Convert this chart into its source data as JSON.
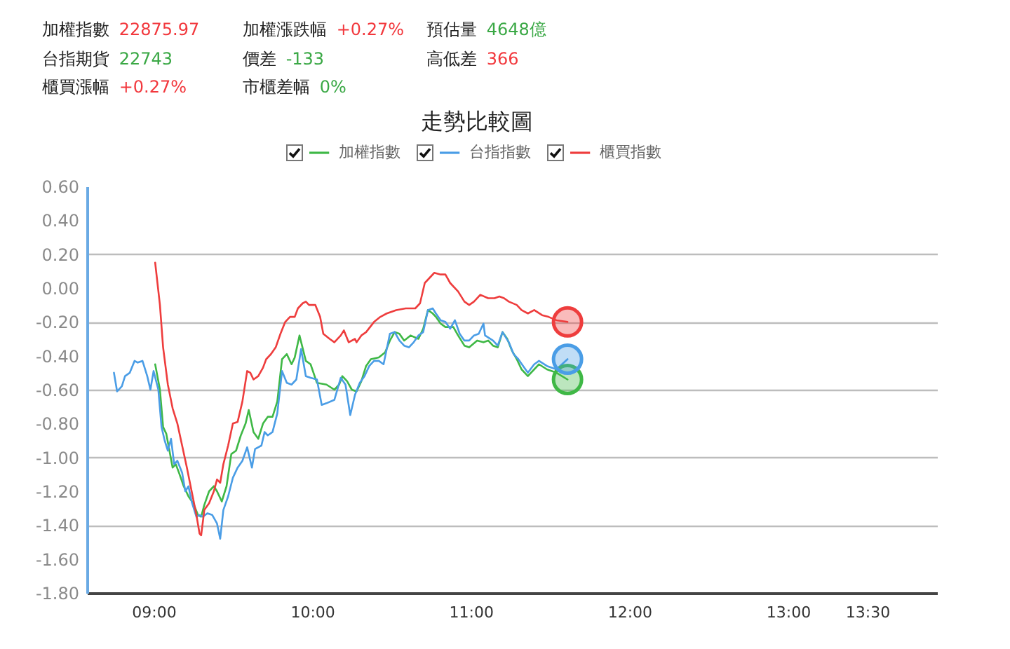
{
  "chart_data": {
    "type": "line",
    "title": "走勢比較圖",
    "annotations": [
      "加權指數 22875.97",
      "加權漲跌幅 +0.27%",
      "預估量 4648億",
      "台指期貨 22743",
      "價差 -133",
      "高低差 366",
      "櫃買漲幅 +0.27%",
      "市櫃差幅 0%"
    ],
    "series": [
      {
        "name": "加權指數",
        "color": "#3fb846",
        "x": [
          9.01,
          9.04,
          9.06,
          9.08,
          9.1,
          9.12,
          9.14,
          9.16,
          9.19,
          9.22,
          9.25,
          9.28,
          9.3,
          9.32,
          9.35,
          9.38,
          9.4,
          9.43,
          9.46,
          9.49,
          9.52,
          9.55,
          9.58,
          9.6,
          9.63,
          9.66,
          9.69,
          9.72,
          9.75,
          9.78,
          9.81,
          9.84,
          9.87,
          9.89,
          9.92,
          9.96,
          9.99,
          10.03,
          10.09,
          10.14,
          10.17,
          10.19,
          10.22,
          10.25,
          10.28,
          10.31,
          10.34,
          10.37,
          10.42,
          10.46,
          10.49,
          10.52,
          10.55,
          10.58,
          10.62,
          10.67,
          10.7,
          10.73,
          10.76,
          10.78,
          10.81,
          10.84,
          10.89,
          10.92,
          10.96,
          10.99,
          11.04,
          11.08,
          11.11,
          11.14,
          11.17,
          11.2,
          11.23,
          11.26,
          11.29,
          11.32,
          11.36,
          11.4,
          11.43,
          11.48,
          11.54,
          11.61
        ],
        "values": [
          -0.45,
          -0.6,
          -0.82,
          -0.86,
          -0.96,
          -1.06,
          -1.04,
          -1.09,
          -1.17,
          -1.23,
          -1.27,
          -1.34,
          -1.35,
          -1.28,
          -1.2,
          -1.17,
          -1.2,
          -1.26,
          -1.17,
          -0.98,
          -0.96,
          -0.87,
          -0.8,
          -0.72,
          -0.85,
          -0.89,
          -0.8,
          -0.76,
          -0.76,
          -0.67,
          -0.42,
          -0.39,
          -0.45,
          -0.41,
          -0.28,
          -0.43,
          -0.45,
          -0.56,
          -0.57,
          -0.6,
          -0.57,
          -0.52,
          -0.55,
          -0.6,
          -0.61,
          -0.55,
          -0.46,
          -0.42,
          -0.41,
          -0.38,
          -0.31,
          -0.26,
          -0.27,
          -0.31,
          -0.28,
          -0.3,
          -0.24,
          -0.13,
          -0.15,
          -0.17,
          -0.21,
          -0.23,
          -0.23,
          -0.28,
          -0.34,
          -0.35,
          -0.31,
          -0.32,
          -0.31,
          -0.34,
          -0.35,
          -0.26,
          -0.3,
          -0.37,
          -0.42,
          -0.48,
          -0.52,
          -0.48,
          -0.45,
          -0.48,
          -0.5,
          -0.54
        ]
      },
      {
        "name": "台指指數",
        "color": "#4a9de6",
        "x": [
          8.75,
          8.77,
          8.8,
          8.82,
          8.85,
          8.88,
          8.9,
          8.93,
          8.96,
          8.98,
          9.0,
          9.03,
          9.05,
          9.07,
          9.09,
          9.11,
          9.13,
          9.15,
          9.18,
          9.2,
          9.22,
          9.24,
          9.27,
          9.29,
          9.31,
          9.34,
          9.37,
          9.4,
          9.42,
          9.44,
          9.47,
          9.5,
          9.53,
          9.56,
          9.59,
          9.62,
          9.64,
          9.68,
          9.7,
          9.72,
          9.75,
          9.78,
          9.81,
          9.84,
          9.87,
          9.9,
          9.93,
          9.96,
          9.99,
          10.03,
          10.06,
          10.09,
          10.14,
          10.18,
          10.21,
          10.24,
          10.27,
          10.3,
          10.33,
          10.36,
          10.39,
          10.42,
          10.45,
          10.49,
          10.52,
          10.55,
          10.58,
          10.61,
          10.64,
          10.67,
          10.7,
          10.73,
          10.76,
          10.78,
          10.81,
          10.84,
          10.87,
          10.9,
          10.93,
          10.96,
          10.99,
          11.02,
          11.05,
          11.08,
          11.09,
          11.14,
          11.17,
          11.2,
          11.24,
          11.27,
          11.3,
          11.33,
          11.36,
          11.4,
          11.43,
          11.48,
          11.54,
          11.61
        ],
        "values": [
          -0.5,
          -0.61,
          -0.58,
          -0.52,
          -0.5,
          -0.43,
          -0.44,
          -0.43,
          -0.52,
          -0.6,
          -0.49,
          -0.6,
          -0.82,
          -0.9,
          -0.96,
          -0.89,
          -1.04,
          -1.02,
          -1.09,
          -1.2,
          -1.17,
          -1.26,
          -1.35,
          -1.34,
          -1.35,
          -1.33,
          -1.34,
          -1.39,
          -1.48,
          -1.31,
          -1.23,
          -1.12,
          -1.06,
          -1.02,
          -0.94,
          -1.06,
          -0.95,
          -0.93,
          -0.85,
          -0.87,
          -0.85,
          -0.74,
          -0.49,
          -0.56,
          -0.57,
          -0.54,
          -0.36,
          -0.52,
          -0.53,
          -0.54,
          -0.69,
          -0.68,
          -0.66,
          -0.53,
          -0.57,
          -0.75,
          -0.63,
          -0.56,
          -0.52,
          -0.46,
          -0.43,
          -0.43,
          -0.45,
          -0.27,
          -0.26,
          -0.31,
          -0.34,
          -0.35,
          -0.32,
          -0.28,
          -0.26,
          -0.13,
          -0.12,
          -0.15,
          -0.19,
          -0.2,
          -0.24,
          -0.19,
          -0.27,
          -0.31,
          -0.31,
          -0.28,
          -0.27,
          -0.21,
          -0.28,
          -0.31,
          -0.34,
          -0.26,
          -0.32,
          -0.39,
          -0.42,
          -0.46,
          -0.5,
          -0.45,
          -0.43,
          -0.46,
          -0.48,
          -0.42
        ]
      },
      {
        "name": "櫃買指數",
        "color": "#ee3d3d",
        "x": [
          9.01,
          9.04,
          9.06,
          9.09,
          9.12,
          9.15,
          9.18,
          9.21,
          9.24,
          9.27,
          9.29,
          9.3,
          9.32,
          9.35,
          9.38,
          9.4,
          9.42,
          9.44,
          9.47,
          9.5,
          9.53,
          9.56,
          9.59,
          9.61,
          9.63,
          9.66,
          9.69,
          9.71,
          9.74,
          9.77,
          9.8,
          9.83,
          9.86,
          9.89,
          9.91,
          9.94,
          9.96,
          9.98,
          10.02,
          10.05,
          10.07,
          10.11,
          10.14,
          10.18,
          10.2,
          10.23,
          10.27,
          10.28,
          10.31,
          10.34,
          10.39,
          10.43,
          10.47,
          10.53,
          10.59,
          10.65,
          10.68,
          10.71,
          10.74,
          10.77,
          10.81,
          10.84,
          10.87,
          10.92,
          10.96,
          10.99,
          11.02,
          11.06,
          11.11,
          11.15,
          11.18,
          11.21,
          11.24,
          11.29,
          11.32,
          11.36,
          11.4,
          11.45,
          11.49,
          11.54,
          11.61
        ],
        "values": [
          0.15,
          -0.1,
          -0.35,
          -0.57,
          -0.71,
          -0.8,
          -0.93,
          -1.06,
          -1.2,
          -1.34,
          -1.45,
          -1.46,
          -1.31,
          -1.27,
          -1.2,
          -1.13,
          -1.15,
          -1.04,
          -0.93,
          -0.8,
          -0.79,
          -0.67,
          -0.49,
          -0.5,
          -0.54,
          -0.52,
          -0.47,
          -0.42,
          -0.39,
          -0.35,
          -0.27,
          -0.2,
          -0.17,
          -0.17,
          -0.12,
          -0.09,
          -0.08,
          -0.1,
          -0.1,
          -0.17,
          -0.27,
          -0.3,
          -0.32,
          -0.28,
          -0.25,
          -0.32,
          -0.3,
          -0.32,
          -0.28,
          -0.26,
          -0.2,
          -0.17,
          -0.15,
          -0.13,
          -0.12,
          -0.12,
          -0.09,
          0.03,
          0.06,
          0.09,
          0.08,
          0.08,
          0.03,
          -0.02,
          -0.08,
          -0.1,
          -0.08,
          -0.04,
          -0.06,
          -0.06,
          -0.05,
          -0.06,
          -0.08,
          -0.1,
          -0.13,
          -0.15,
          -0.13,
          -0.16,
          -0.17,
          -0.19,
          -0.2
        ]
      }
    ],
    "xlim": [
      8.58,
      13.94
    ],
    "xticks": [
      {
        "value": 9,
        "label": "09:00"
      },
      {
        "value": 10,
        "label": "10:00"
      },
      {
        "value": 11,
        "label": "11:00"
      },
      {
        "value": 12,
        "label": "12:00"
      },
      {
        "value": 13,
        "label": "13:00"
      },
      {
        "value": 13.5,
        "label": "13:30"
      }
    ],
    "ylim": [
      -1.8,
      0.6
    ],
    "yticks": [
      {
        "value": -1.8,
        "label": "-1.80"
      },
      {
        "value": -1.6,
        "label": "-1.60"
      },
      {
        "value": -1.4,
        "label": "-1.40"
      },
      {
        "value": -1.2,
        "label": "-1.20"
      },
      {
        "value": -1,
        "label": "-1.00"
      },
      {
        "value": -0.8,
        "label": "-0.80"
      },
      {
        "value": -0.6,
        "label": "-0.60"
      },
      {
        "value": -0.4,
        "label": "-0.40"
      },
      {
        "value": -0.2,
        "label": "-0.20"
      },
      {
        "value": 0,
        "label": "0.00"
      },
      {
        "value": 0.2,
        "label": "0.20"
      },
      {
        "value": 0.4,
        "label": "0.40"
      },
      {
        "value": 0.6,
        "label": "0.60"
      }
    ],
    "grid": "y",
    "legend": "top"
  }
}
